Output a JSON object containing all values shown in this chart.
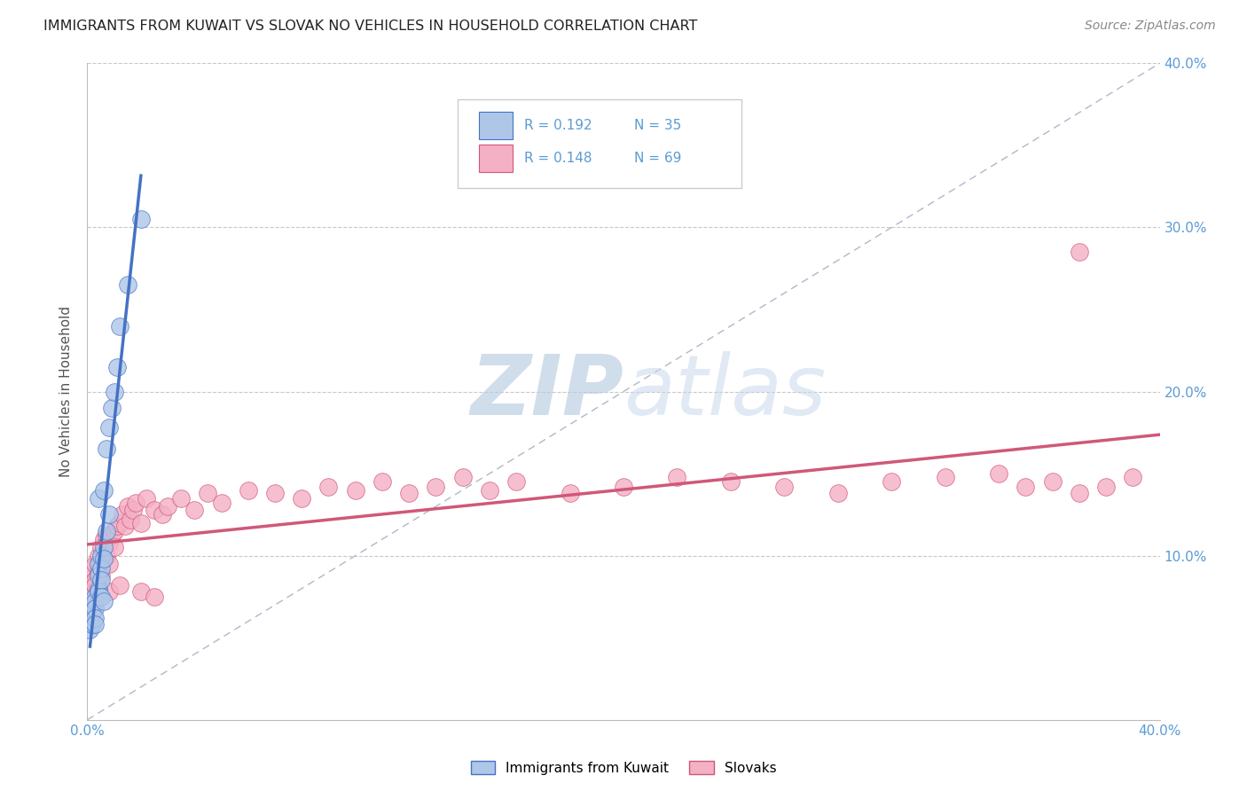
{
  "title": "IMMIGRANTS FROM KUWAIT VS SLOVAK NO VEHICLES IN HOUSEHOLD CORRELATION CHART",
  "source": "Source: ZipAtlas.com",
  "ylabel": "No Vehicles in Household",
  "xlim": [
    0.0,
    0.4
  ],
  "ylim": [
    0.0,
    0.4
  ],
  "legend_label_blue": "Immigrants from Kuwait",
  "legend_label_pink": "Slovaks",
  "r_blue": 0.192,
  "n_blue": 35,
  "r_pink": 0.148,
  "n_pink": 69,
  "blue_fill": "#aec6e8",
  "blue_edge": "#4472C4",
  "pink_fill": "#f4b0c5",
  "pink_edge": "#d05878",
  "blue_line": "#4472C4",
  "pink_line": "#d05878",
  "background": "#ffffff",
  "watermark_color": "#c8d8ec",
  "grid_color": "#c8c8c8",
  "dash_color": "#b0b8c8",
  "blue_x": [
    0.001,
    0.001,
    0.001,
    0.002,
    0.002,
    0.002,
    0.002,
    0.003,
    0.003,
    0.003,
    0.003,
    0.003,
    0.004,
    0.004,
    0.004,
    0.004,
    0.004,
    0.005,
    0.005,
    0.005,
    0.005,
    0.006,
    0.006,
    0.006,
    0.006,
    0.007,
    0.007,
    0.008,
    0.008,
    0.009,
    0.01,
    0.011,
    0.012,
    0.015,
    0.02
  ],
  "blue_y": [
    0.06,
    0.058,
    0.055,
    0.07,
    0.068,
    0.065,
    0.058,
    0.075,
    0.072,
    0.068,
    0.062,
    0.058,
    0.08,
    0.135,
    0.095,
    0.088,
    0.078,
    0.1,
    0.092,
    0.085,
    0.075,
    0.14,
    0.105,
    0.098,
    0.072,
    0.165,
    0.115,
    0.178,
    0.125,
    0.19,
    0.2,
    0.215,
    0.24,
    0.265,
    0.305
  ],
  "pink_x": [
    0.001,
    0.001,
    0.002,
    0.002,
    0.003,
    0.003,
    0.004,
    0.004,
    0.005,
    0.005,
    0.006,
    0.006,
    0.007,
    0.007,
    0.008,
    0.008,
    0.009,
    0.01,
    0.01,
    0.011,
    0.012,
    0.013,
    0.014,
    0.015,
    0.016,
    0.017,
    0.018,
    0.02,
    0.022,
    0.025,
    0.028,
    0.03,
    0.035,
    0.04,
    0.045,
    0.05,
    0.06,
    0.07,
    0.08,
    0.09,
    0.1,
    0.11,
    0.12,
    0.13,
    0.14,
    0.15,
    0.16,
    0.18,
    0.2,
    0.22,
    0.24,
    0.26,
    0.28,
    0.3,
    0.32,
    0.34,
    0.35,
    0.36,
    0.37,
    0.38,
    0.39,
    0.002,
    0.003,
    0.005,
    0.008,
    0.012,
    0.02,
    0.025,
    0.37
  ],
  "pink_y": [
    0.088,
    0.078,
    0.092,
    0.082,
    0.095,
    0.085,
    0.1,
    0.09,
    0.105,
    0.095,
    0.11,
    0.098,
    0.112,
    0.1,
    0.108,
    0.095,
    0.112,
    0.115,
    0.105,
    0.118,
    0.12,
    0.125,
    0.118,
    0.13,
    0.122,
    0.128,
    0.132,
    0.12,
    0.135,
    0.128,
    0.125,
    0.13,
    0.135,
    0.128,
    0.138,
    0.132,
    0.14,
    0.138,
    0.135,
    0.142,
    0.14,
    0.145,
    0.138,
    0.142,
    0.148,
    0.14,
    0.145,
    0.138,
    0.142,
    0.148,
    0.145,
    0.142,
    0.138,
    0.145,
    0.148,
    0.15,
    0.142,
    0.145,
    0.138,
    0.142,
    0.148,
    0.075,
    0.082,
    0.088,
    0.078,
    0.082,
    0.078,
    0.075,
    0.285
  ]
}
